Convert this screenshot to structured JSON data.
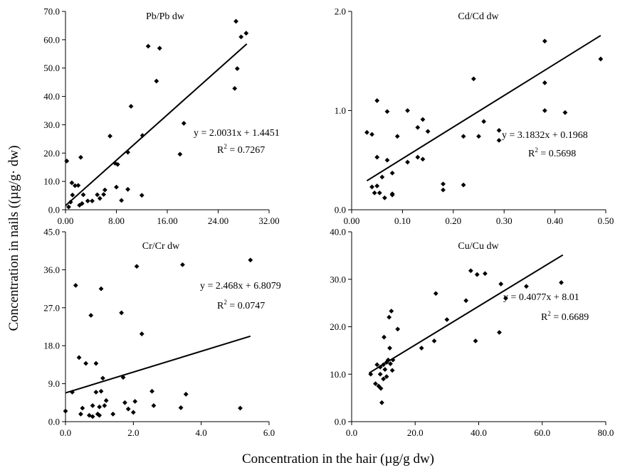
{
  "figure": {
    "y_axis_title": "Concentration in nails ((µg/g· dw)",
    "x_axis_title": "Concentration in the hair (µg/g dw)"
  },
  "chart_data": [
    {
      "type": "scatter",
      "title": "Pb/Pb dw",
      "equation": "y = 2.0031x + 1.4451",
      "r2_prefix": "R",
      "r2_suffix": " = 0.7267",
      "xlim": [
        0,
        32
      ],
      "ylim": [
        0,
        70
      ],
      "x_ticks": [
        "0.00",
        "8.00",
        "16.00",
        "24.00",
        "32.00"
      ],
      "y_ticks": [
        "0.0",
        "10.0",
        "20.0",
        "30.0",
        "40.0",
        "50.0",
        "60.0",
        "70.0"
      ],
      "trendline": {
        "slope": 2.0031,
        "intercept": 1.4451,
        "x_range": [
          0,
          28.5
        ]
      },
      "points": [
        [
          0.2,
          17.2
        ],
        [
          0.5,
          1
        ],
        [
          0.8,
          2.7
        ],
        [
          1,
          9.5
        ],
        [
          1.1,
          5.2
        ],
        [
          1.5,
          8.5
        ],
        [
          2,
          8.6
        ],
        [
          2.2,
          1.6
        ],
        [
          2.4,
          18.5
        ],
        [
          2.6,
          2.2
        ],
        [
          2.8,
          5.3
        ],
        [
          3.5,
          3.1
        ],
        [
          4.2,
          3.1
        ],
        [
          5,
          5.3
        ],
        [
          5.4,
          4
        ],
        [
          6,
          5.4
        ],
        [
          6.2,
          7
        ],
        [
          7,
          26
        ],
        [
          7.8,
          16.4
        ],
        [
          8,
          8
        ],
        [
          8.2,
          16
        ],
        [
          8.8,
          3.3
        ],
        [
          9.8,
          20.3
        ],
        [
          9.8,
          7.2
        ],
        [
          10.3,
          36.5
        ],
        [
          12,
          5.1
        ],
        [
          12.1,
          26.2
        ],
        [
          13,
          57.7
        ],
        [
          14.3,
          45.4
        ],
        [
          14.8,
          57
        ],
        [
          18,
          19.6
        ],
        [
          18.6,
          30.5
        ],
        [
          26.6,
          42.8
        ],
        [
          26.8,
          66.5
        ],
        [
          27,
          49.8
        ],
        [
          27.6,
          61
        ],
        [
          28.4,
          62.3
        ]
      ]
    },
    {
      "type": "scatter",
      "title": "Cd/Cd dw",
      "equation": "y = 3.1832x + 0.1968",
      "r2_prefix": "R",
      "r2_suffix": " = 0.5698",
      "xlim": [
        0,
        0.5
      ],
      "ylim": [
        0,
        2
      ],
      "x_ticks": [
        "0.00",
        "0.10",
        "0.20",
        "0.30",
        "0.40",
        "0.50"
      ],
      "y_ticks": [
        "0.0",
        "1.0",
        "2.0"
      ],
      "trendline": {
        "slope": 3.1832,
        "intercept": 0.1968,
        "x_range": [
          0.03,
          0.49
        ]
      },
      "points": [
        [
          0.03,
          0.78
        ],
        [
          0.04,
          0.76
        ],
        [
          0.04,
          0.23
        ],
        [
          0.045,
          0.17
        ],
        [
          0.05,
          1.1
        ],
        [
          0.05,
          0.53
        ],
        [
          0.05,
          0.24
        ],
        [
          0.055,
          0.17
        ],
        [
          0.06,
          0.33
        ],
        [
          0.065,
          0.12
        ],
        [
          0.07,
          0.99
        ],
        [
          0.07,
          0.5
        ],
        [
          0.08,
          0.37
        ],
        [
          0.08,
          0.16
        ],
        [
          0.08,
          0.15
        ],
        [
          0.09,
          0.74
        ],
        [
          0.11,
          1
        ],
        [
          0.11,
          0.48
        ],
        [
          0.13,
          0.83
        ],
        [
          0.13,
          0.53
        ],
        [
          0.14,
          0.91
        ],
        [
          0.14,
          0.51
        ],
        [
          0.15,
          0.79
        ],
        [
          0.18,
          0.26
        ],
        [
          0.18,
          0.2
        ],
        [
          0.22,
          0.74
        ],
        [
          0.22,
          0.25
        ],
        [
          0.24,
          1.32
        ],
        [
          0.25,
          0.74
        ],
        [
          0.26,
          0.89
        ],
        [
          0.29,
          0.8
        ],
        [
          0.29,
          0.7
        ],
        [
          0.38,
          1.7
        ],
        [
          0.38,
          1.28
        ],
        [
          0.38,
          1
        ],
        [
          0.42,
          0.98
        ],
        [
          0.49,
          1.52
        ]
      ]
    },
    {
      "type": "scatter",
      "title": "Cr/Cr dw",
      "equation": "y = 2.468x + 6.8079",
      "r2_prefix": "R",
      "r2_suffix": " = 0.0747",
      "xlim": [
        0,
        6
      ],
      "ylim": [
        0,
        45
      ],
      "x_ticks": [
        "0.0",
        "2.0",
        "4.0",
        "6.0"
      ],
      "y_ticks": [
        "0.0",
        "9.0",
        "18.0",
        "27.0",
        "36.0",
        "45.0"
      ],
      "trendline": {
        "slope": 2.468,
        "intercept": 6.8079,
        "x_range": [
          0,
          5.45
        ]
      },
      "points": [
        [
          0,
          2.5
        ],
        [
          0.2,
          7
        ],
        [
          0.3,
          32.3
        ],
        [
          0.4,
          15.2
        ],
        [
          0.45,
          1.8
        ],
        [
          0.5,
          3.2
        ],
        [
          0.6,
          13.8
        ],
        [
          0.7,
          1.5
        ],
        [
          0.75,
          25.2
        ],
        [
          0.8,
          1.2
        ],
        [
          0.8,
          3.8
        ],
        [
          0.9,
          13.8
        ],
        [
          0.9,
          7
        ],
        [
          0.95,
          1.8
        ],
        [
          1,
          3.5
        ],
        [
          1,
          1.5
        ],
        [
          1.05,
          31.5
        ],
        [
          1.05,
          7.2
        ],
        [
          1.1,
          10.3
        ],
        [
          1.15,
          3.8
        ],
        [
          1.2,
          5
        ],
        [
          1.4,
          1.8
        ],
        [
          1.65,
          25.8
        ],
        [
          1.7,
          10.5
        ],
        [
          1.75,
          4.5
        ],
        [
          1.85,
          3
        ],
        [
          2,
          2.2
        ],
        [
          2.05,
          4.8
        ],
        [
          2.1,
          36.8
        ],
        [
          2.25,
          20.8
        ],
        [
          2.55,
          7.2
        ],
        [
          2.6,
          3.8
        ],
        [
          3.4,
          3.3
        ],
        [
          3.45,
          37.2
        ],
        [
          3.55,
          6.5
        ],
        [
          5.15,
          3.2
        ],
        [
          5.45,
          38.3
        ]
      ]
    },
    {
      "type": "scatter",
      "title": "Cu/Cu dw",
      "equation": "y = 0.4077x + 8.01",
      "r2_prefix": "R",
      "r2_suffix": " = 0.6689",
      "xlim": [
        0,
        80
      ],
      "ylim": [
        0,
        40
      ],
      "x_ticks": [
        "0.0",
        "20.0",
        "40.0",
        "60.0",
        "80.0"
      ],
      "y_ticks": [
        "0.0",
        "10.0",
        "20.0",
        "30.0",
        "40.0"
      ],
      "trendline": {
        "slope": 0.4077,
        "intercept": 8.01,
        "x_range": [
          5.5,
          66.5
        ]
      },
      "points": [
        [
          6,
          10
        ],
        [
          7.5,
          8
        ],
        [
          8,
          12
        ],
        [
          8.5,
          7.5
        ],
        [
          9,
          10
        ],
        [
          9,
          11.5
        ],
        [
          9.2,
          7
        ],
        [
          9.5,
          4
        ],
        [
          10,
          12
        ],
        [
          10,
          9
        ],
        [
          10.2,
          17.8
        ],
        [
          10.5,
          11
        ],
        [
          11,
          9.5
        ],
        [
          11,
          12.5
        ],
        [
          11.5,
          13
        ],
        [
          11.8,
          22
        ],
        [
          12,
          15.5
        ],
        [
          12.2,
          12.2
        ],
        [
          12.5,
          23.3
        ],
        [
          12.8,
          10.8
        ],
        [
          13,
          13
        ],
        [
          14.5,
          19.5
        ],
        [
          22,
          15.5
        ],
        [
          26,
          17
        ],
        [
          26.5,
          27
        ],
        [
          30,
          21.5
        ],
        [
          36,
          25.5
        ],
        [
          37.5,
          31.8
        ],
        [
          39,
          17
        ],
        [
          39.5,
          31
        ],
        [
          42,
          31.2
        ],
        [
          46.5,
          18.8
        ],
        [
          47,
          29
        ],
        [
          48.5,
          26
        ],
        [
          55,
          28.5
        ],
        [
          66,
          29.3
        ]
      ]
    }
  ]
}
